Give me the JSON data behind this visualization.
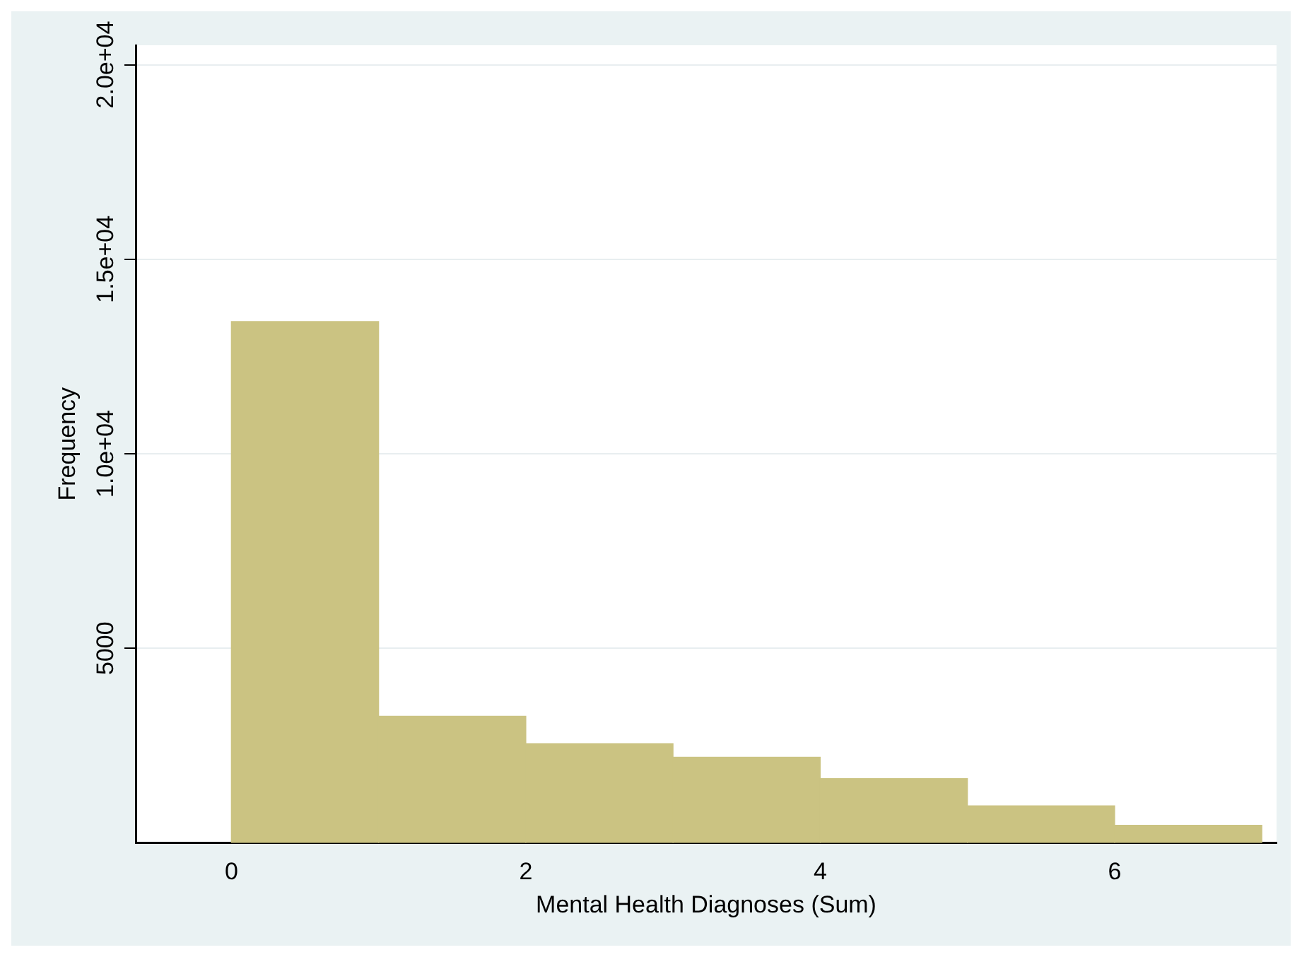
{
  "chart_data": {
    "type": "histogram",
    "xlabel": "Mental Health Diagnoses (Sum)",
    "ylabel": "Frequency",
    "bins": [
      0,
      1,
      2,
      3,
      4,
      5,
      6,
      7
    ],
    "values": [
      13400,
      3250,
      2550,
      2200,
      1650,
      950,
      450
    ],
    "color": "#cbc382",
    "xlim": [
      -0.65,
      7.1
    ],
    "xticks": [
      0,
      2,
      4,
      6
    ],
    "ylim": [
      0,
      20500
    ],
    "yticks": [
      {
        "value": 5000,
        "label": "5000"
      },
      {
        "value": 10000,
        "label": "1.0e+04"
      },
      {
        "value": 15000,
        "label": "1.5e+04"
      },
      {
        "value": 20000,
        "label": "2.0e+04"
      }
    ],
    "grid": "y"
  }
}
